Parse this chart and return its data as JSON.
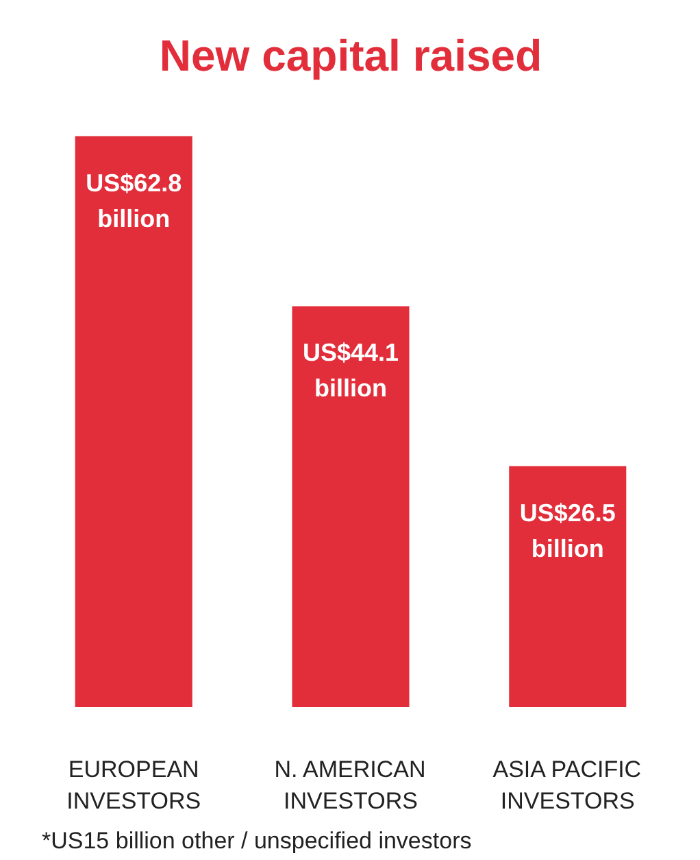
{
  "chart_data": {
    "type": "bar",
    "title": "New capital raised",
    "categories": [
      "EUROPEAN INVESTORS",
      "N. AMERICAN INVESTORS",
      "ASIA PACIFIC INVESTORS"
    ],
    "values": [
      62.8,
      44.1,
      26.5
    ],
    "value_labels": [
      "US$62.8\nbillion",
      "US$44.1\nbillion",
      "US$26.5\nbillion"
    ],
    "color": "#e22d3a",
    "annotations": [
      "*US15 billion other / unspecified investors"
    ]
  }
}
